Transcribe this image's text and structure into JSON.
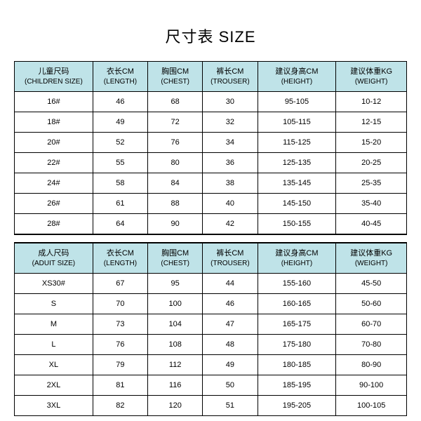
{
  "title": "尺寸表 SIZE",
  "columns": [
    {
      "cn": "儿童尺码",
      "en": "(CHILDREN SIZE)"
    },
    {
      "cn": "衣长CM",
      "en": "(LENGTH)"
    },
    {
      "cn": "胸围CM",
      "en": "(CHEST)"
    },
    {
      "cn": "裤长CM",
      "en": "(TROUSER)"
    },
    {
      "cn": "建议身高CM",
      "en": "(HEIGHT)"
    },
    {
      "cn": "建议体重KG",
      "en": "(WEIGHT)"
    }
  ],
  "children_rows": [
    [
      "16#",
      "46",
      "68",
      "30",
      "95-105",
      "10-12"
    ],
    [
      "18#",
      "49",
      "72",
      "32",
      "105-115",
      "12-15"
    ],
    [
      "20#",
      "52",
      "76",
      "34",
      "115-125",
      "15-20"
    ],
    [
      "22#",
      "55",
      "80",
      "36",
      "125-135",
      "20-25"
    ],
    [
      "24#",
      "58",
      "84",
      "38",
      "135-145",
      "25-35"
    ],
    [
      "26#",
      "61",
      "88",
      "40",
      "145-150",
      "35-40"
    ],
    [
      "28#",
      "64",
      "90",
      "42",
      "150-155",
      "40-45"
    ]
  ],
  "adult_columns": [
    {
      "cn": "成人尺码",
      "en": "(ADUIT SIZE)"
    },
    {
      "cn": "衣长CM",
      "en": "(LENGTH)"
    },
    {
      "cn": "胸围CM",
      "en": "(CHEST)"
    },
    {
      "cn": "裤长CM",
      "en": "(TROUSER)"
    },
    {
      "cn": "建议身高CM",
      "en": "(HEIGHT)"
    },
    {
      "cn": "建议体重KG",
      "en": "(WEIGHT)"
    }
  ],
  "adult_rows": [
    [
      "XS30#",
      "67",
      "95",
      "44",
      "155-160",
      "45-50"
    ],
    [
      "S",
      "70",
      "100",
      "46",
      "160-165",
      "50-60"
    ],
    [
      "M",
      "73",
      "104",
      "47",
      "165-175",
      "60-70"
    ],
    [
      "L",
      "76",
      "108",
      "48",
      "175-180",
      "70-80"
    ],
    [
      "XL",
      "79",
      "112",
      "49",
      "180-185",
      "80-90"
    ],
    [
      "2XL",
      "81",
      "116",
      "50",
      "185-195",
      "90-100"
    ],
    [
      "3XL",
      "82",
      "120",
      "51",
      "195-205",
      "100-105"
    ]
  ],
  "styling": {
    "header_bg": "#bfe3e8",
    "border_color": "#000000",
    "page_bg": "#ffffff",
    "col_widths_pct": [
      20,
      14,
      14,
      14,
      20,
      18
    ]
  }
}
